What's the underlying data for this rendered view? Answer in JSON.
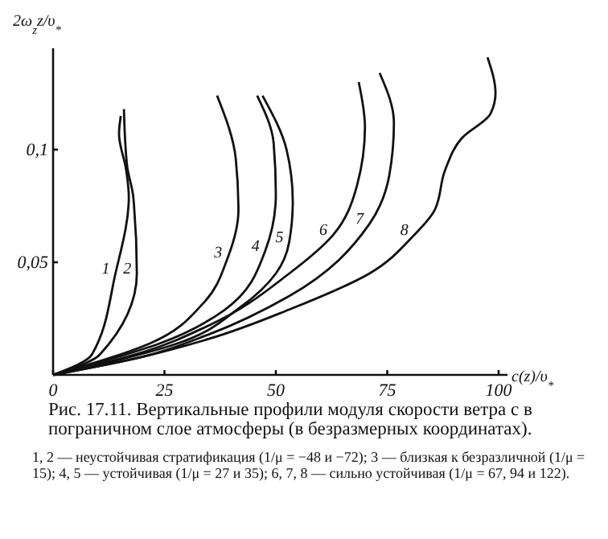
{
  "chart_data": {
    "type": "line",
    "title": "Рис. 17.11. Вертикальные профили модуля скорости ветра c в пограничном слое атмосферы (в безразмерных координатах).",
    "xlabel": "c(z)/υ$_{*}$",
    "ylabel": "2ω$_{z}$z/υ$_{*}$",
    "xlim": [
      0,
      102
    ],
    "ylim": [
      0,
      0.145
    ],
    "xticks": [
      0,
      25,
      50,
      75,
      100
    ],
    "yticks": [
      {
        "value": 0.05,
        "label": "0,05"
      },
      {
        "value": 0.1,
        "label": "0,1"
      }
    ],
    "grid": false,
    "marker": "none",
    "line_style": "solid",
    "series": [
      {
        "color": "#111111",
        "x": [
          0,
          8.7,
          14,
          17,
          16.4,
          14.8,
          15.2
        ],
        "values": [
          0,
          0.009,
          0.045,
          0.079,
          0.091,
          0.107,
          0.115
        ]
      },
      {
        "color": "#111111",
        "x": [
          0,
          10.5,
          18.8,
          18,
          16.6,
          15.9
        ],
        "values": [
          0,
          0.009,
          0.045,
          0.079,
          0.093,
          0.118
        ]
      },
      {
        "color": "#111111",
        "x": [
          0,
          21.8,
          33.8,
          39.2,
          41.6,
          41,
          36.8
        ],
        "values": [
          0,
          0.014,
          0.032,
          0.052,
          0.073,
          0.096,
          0.124
        ]
      },
      {
        "color": "#111111",
        "x": [
          0,
          24,
          38.6,
          47.6,
          50,
          49.5,
          45.8
        ],
        "values": [
          0,
          0.014,
          0.029,
          0.055,
          0.08,
          0.103,
          0.124
        ]
      },
      {
        "color": "#111111",
        "x": [
          0,
          28,
          42,
          50,
          53,
          53.8,
          52.4,
          47
        ],
        "values": [
          0,
          0.014,
          0.03,
          0.045,
          0.059,
          0.077,
          0.1,
          0.124
        ]
      },
      {
        "color": "#111111",
        "x": [
          0,
          20,
          35,
          53,
          62.8,
          68.2,
          70,
          68.6
        ],
        "values": [
          0,
          0.01,
          0.022,
          0.045,
          0.062,
          0.084,
          0.11,
          0.13
        ]
      },
      {
        "color": "#111111",
        "x": [
          0,
          20,
          35,
          53,
          71,
          75.5,
          76.5,
          73.3
        ],
        "values": [
          0,
          0.008,
          0.018,
          0.035,
          0.067,
          0.089,
          0.112,
          0.134
        ]
      },
      {
        "color": "#111111",
        "x": [
          0,
          20,
          35,
          53,
          71,
          81,
          85.6,
          88,
          91.7,
          98.2,
          99.3,
          97.5
        ],
        "values": [
          0,
          0.008,
          0.016,
          0.029,
          0.045,
          0.062,
          0.073,
          0.091,
          0.105,
          0.116,
          0.125,
          0.141
        ]
      }
    ],
    "annotations": [
      {
        "text": "1",
        "x": 14,
        "y": 0.045
      },
      {
        "text": "2",
        "x": 18.8,
        "y": 0.045
      },
      {
        "text": "3",
        "x": 39.2,
        "y": 0.052
      },
      {
        "text": "4",
        "x": 47.6,
        "y": 0.055
      },
      {
        "text": "5",
        "x": 53,
        "y": 0.059
      },
      {
        "text": "6",
        "x": 62.8,
        "y": 0.062
      },
      {
        "text": "7",
        "x": 71,
        "y": 0.067
      },
      {
        "text": "8",
        "x": 81,
        "y": 0.062
      },
      "1, 2 — неустойчивая стратификация (1/μ = −48 и −72); 3 — близкая к безразличной (1/μ = 15); 4, 5 — устойчивая (1/μ = 27 и 35); 6, 7, 8 — сильно устойчивая (1/μ = 67, 94 и 122)."
    ]
  }
}
